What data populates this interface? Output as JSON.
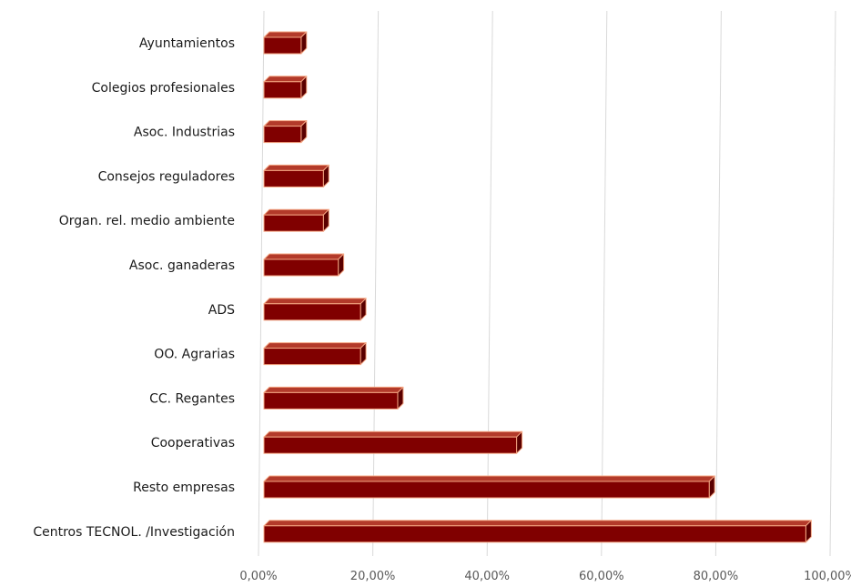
{
  "chart_data": {
    "type": "bar",
    "orientation": "horizontal",
    "title": "",
    "xlabel": "",
    "ylabel": "",
    "categories": [
      "Ayuntamientos",
      "Colegios profesionales",
      "Asoc. Industrias",
      "Consejos reguladores",
      "Organ. rel. medio ambiente",
      "Asoc. ganaderas",
      "ADS",
      "OO. Agrarias",
      "CC. Regantes",
      "Cooperativas",
      "Resto empresas",
      "Centros TECNOL. /Investigación"
    ],
    "values": [
      6.5,
      6.5,
      6.5,
      10.4,
      10.4,
      13.0,
      16.9,
      16.9,
      23.4,
      44.2,
      77.9,
      94.8
    ],
    "value_unit": "percent",
    "xlim": [
      0,
      100
    ],
    "xticks": [
      0,
      20,
      40,
      60,
      80,
      100
    ],
    "xtick_labels": [
      "0,00%",
      "20,00%",
      "40,00%",
      "60,00%",
      "80,00%",
      "100,00%"
    ],
    "grid": "vertical",
    "legend": "none",
    "bar_style": "3d",
    "colors": {
      "bar_front": "#800000",
      "bar_top": "#b33a2a",
      "bar_side": "#5a0000",
      "bar_edge": "#f4a582",
      "grid": "#d9d9d9",
      "tick_text": "#595959",
      "label_text": "#1a1a1a"
    }
  }
}
